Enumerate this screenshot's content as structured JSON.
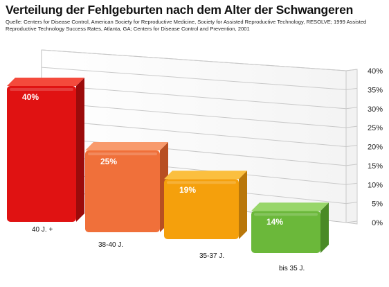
{
  "chart_data": {
    "type": "bar",
    "title": "Verteilung der Fehlgeburten nach dem Alter der Schwangeren",
    "subtitle": "Quelle: Centers for Disease Control, American Society for Reproductive Medicine, Society for Assisted Reproductive Technology, RESOLVE; 1999 Assisted Reproductive Technology Success Rates, Atlanta, GA; Centers for Disease Control and Prevention, 2001",
    "categories": [
      "40 J. +",
      "38-40 J.",
      "35-37 J.",
      "bis 35 J."
    ],
    "values": [
      40,
      25,
      19,
      14
    ],
    "value_labels": [
      "40%",
      "25%",
      "19%",
      "14%"
    ],
    "y_ticks": [
      "0%",
      "5%",
      "10%",
      "15%",
      "20%",
      "25%",
      "30%",
      "35%",
      "40%"
    ],
    "ylim": [
      0,
      40
    ],
    "ylabel": "",
    "xlabel": "",
    "grid": true,
    "y_axis_position": "right",
    "colors": [
      "#e01212",
      "#f0703a",
      "#f5a00c",
      "#6bb83a"
    ],
    "colors_top": [
      "#f44a3c",
      "#f89a6c",
      "#fbbf3f",
      "#98d66a"
    ],
    "colors_side": [
      "#9c0b0b",
      "#b84f22",
      "#b9770a",
      "#4a8a26"
    ]
  }
}
